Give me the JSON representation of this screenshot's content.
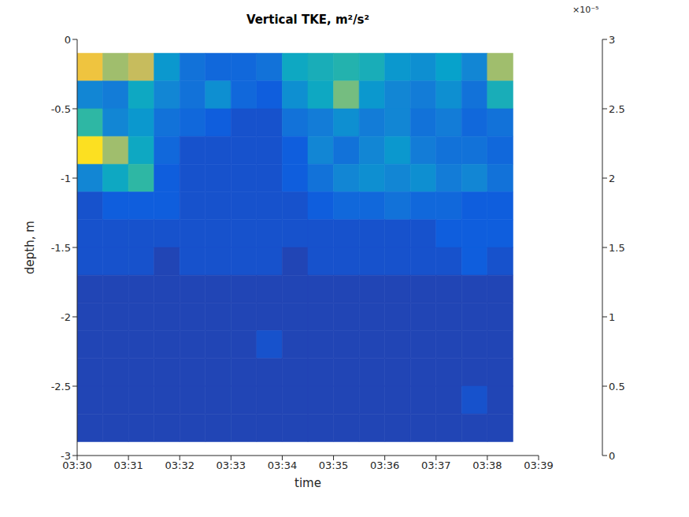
{
  "chart_data": {
    "type": "heatmap",
    "title": "Vertical TKE, m²/s²",
    "xlabel": "time",
    "ylabel": "depth, m",
    "xlim": [
      210,
      219
    ],
    "xticks": [
      {
        "value": 210,
        "label": "03:30"
      },
      {
        "value": 211,
        "label": "03:31"
      },
      {
        "value": 212,
        "label": "03:32"
      },
      {
        "value": 213,
        "label": "03:33"
      },
      {
        "value": 214,
        "label": "03:34"
      },
      {
        "value": 215,
        "label": "03:35"
      },
      {
        "value": 216,
        "label": "03:36"
      },
      {
        "value": 217,
        "label": "03:37"
      },
      {
        "value": 218,
        "label": "03:38"
      },
      {
        "value": 219,
        "label": "03:39"
      }
    ],
    "ylim": [
      -3,
      0
    ],
    "yticks": [
      -3,
      -2.5,
      -2,
      -1.5,
      -1,
      -0.5,
      0
    ],
    "x_edges": [
      210,
      210.5,
      211,
      211.5,
      212,
      212.5,
      213,
      213.5,
      214,
      214.5,
      215,
      215.5,
      216,
      216.5,
      217,
      217.5,
      218,
      218.5
    ],
    "y_edges": [
      -0.1,
      -0.3,
      -0.5,
      -0.7,
      -0.9,
      -1.1,
      -1.3,
      -1.5,
      -1.7,
      -1.9,
      -2.1,
      -2.3,
      -2.5,
      -2.7,
      -2.9
    ],
    "cells": [
      [
        2.5,
        2.0,
        2.2,
        1.0,
        0.6,
        0.5,
        0.5,
        0.6,
        1.2,
        1.3,
        1.4,
        1.3,
        1.0,
        0.9,
        1.1,
        0.8,
        2.0
      ],
      [
        0.8,
        0.7,
        1.2,
        0.8,
        0.6,
        0.9,
        0.5,
        0.4,
        0.9,
        1.2,
        1.8,
        1.0,
        0.8,
        0.7,
        0.9,
        0.6,
        1.3
      ],
      [
        1.5,
        0.8,
        1.0,
        0.6,
        0.5,
        0.4,
        0.3,
        0.3,
        0.6,
        0.7,
        0.9,
        0.7,
        0.8,
        0.6,
        0.7,
        0.5,
        0.6
      ],
      [
        2.8,
        2.0,
        1.2,
        0.5,
        0.3,
        0.3,
        0.3,
        0.3,
        0.4,
        0.8,
        0.6,
        0.8,
        1.0,
        0.7,
        0.6,
        0.6,
        0.5
      ],
      [
        0.8,
        1.2,
        1.5,
        0.4,
        0.3,
        0.3,
        0.3,
        0.3,
        0.4,
        0.6,
        0.8,
        0.9,
        0.8,
        0.9,
        0.7,
        0.8,
        0.6
      ],
      [
        0.3,
        0.4,
        0.4,
        0.4,
        0.3,
        0.3,
        0.3,
        0.3,
        0.3,
        0.4,
        0.5,
        0.5,
        0.6,
        0.5,
        0.5,
        0.4,
        0.4
      ],
      [
        0.3,
        0.3,
        0.3,
        0.3,
        0.3,
        0.3,
        0.3,
        0.3,
        0.3,
        0.3,
        0.3,
        0.3,
        0.3,
        0.3,
        0.4,
        0.4,
        0.4
      ],
      [
        0.3,
        0.3,
        0.3,
        0.2,
        0.3,
        0.3,
        0.3,
        0.3,
        0.2,
        0.3,
        0.3,
        0.3,
        0.3,
        0.3,
        0.3,
        0.4,
        0.3
      ],
      [
        0.2,
        0.2,
        0.2,
        0.2,
        0.2,
        0.2,
        0.2,
        0.2,
        0.2,
        0.2,
        0.2,
        0.2,
        0.2,
        0.2,
        0.2,
        0.2,
        0.2
      ],
      [
        0.2,
        0.2,
        0.2,
        0.2,
        0.2,
        0.2,
        0.2,
        0.2,
        0.2,
        0.2,
        0.2,
        0.2,
        0.2,
        0.2,
        0.2,
        0.2,
        0.2
      ],
      [
        0.2,
        0.2,
        0.2,
        0.2,
        0.2,
        0.2,
        0.2,
        0.3,
        0.2,
        0.2,
        0.2,
        0.2,
        0.2,
        0.2,
        0.2,
        0.2,
        0.2
      ],
      [
        0.2,
        0.2,
        0.2,
        0.2,
        0.2,
        0.2,
        0.2,
        0.2,
        0.2,
        0.2,
        0.2,
        0.2,
        0.2,
        0.2,
        0.2,
        0.2,
        0.2
      ],
      [
        0.2,
        0.2,
        0.2,
        0.2,
        0.2,
        0.2,
        0.2,
        0.2,
        0.2,
        0.2,
        0.2,
        0.2,
        0.2,
        0.2,
        0.2,
        0.3,
        0.2
      ],
      [
        0.2,
        0.2,
        0.2,
        0.2,
        0.2,
        0.2,
        0.2,
        0.2,
        0.2,
        0.2,
        0.2,
        0.2,
        0.2,
        0.2,
        0.2,
        0.2,
        0.2
      ]
    ],
    "colorbar": {
      "range": [
        0,
        3
      ],
      "ticks": [
        0,
        0.5,
        1,
        1.5,
        2,
        2.5,
        3
      ],
      "label": "×10⁻⁵"
    }
  }
}
